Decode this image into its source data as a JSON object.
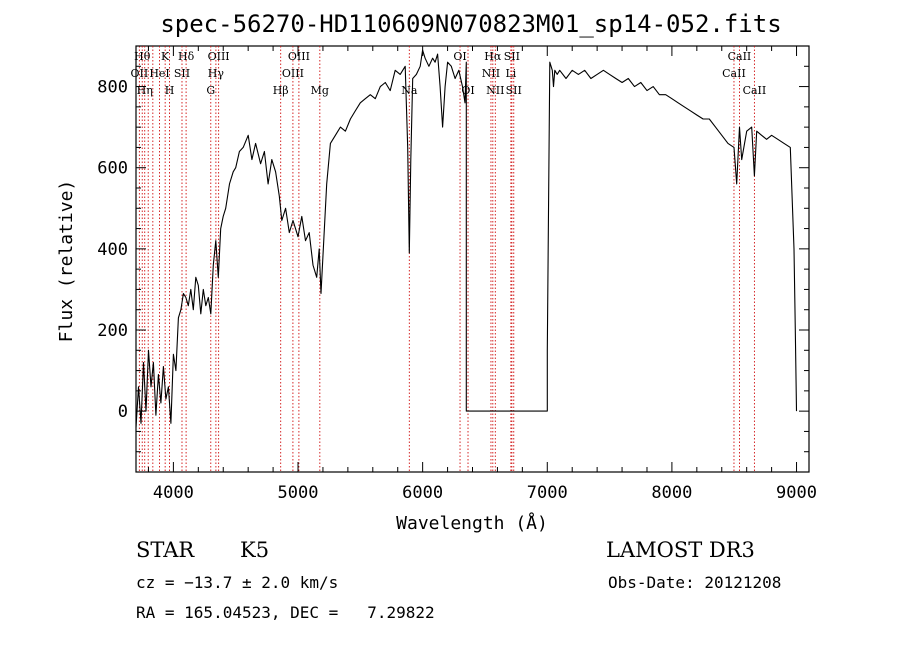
{
  "chart_data": {
    "type": "line",
    "title": "spec-56270-HD110609N070823M01_sp14-052.fits",
    "xlabel": "Wavelength (Å)",
    "ylabel": "Flux (relative)",
    "xlim": [
      3700,
      9100
    ],
    "ylim": [
      -150,
      900
    ],
    "xticks": [
      4000,
      5000,
      6000,
      7000,
      8000,
      9000
    ],
    "yticks": [
      0,
      200,
      400,
      600,
      800
    ],
    "series": [
      {
        "name": "flux",
        "x": [
          3700,
          3720,
          3740,
          3760,
          3780,
          3800,
          3820,
          3840,
          3860,
          3880,
          3900,
          3920,
          3940,
          3960,
          3980,
          4000,
          4020,
          4040,
          4060,
          4080,
          4100,
          4120,
          4140,
          4160,
          4180,
          4200,
          4220,
          4240,
          4260,
          4280,
          4300,
          4320,
          4340,
          4360,
          4380,
          4400,
          4420,
          4450,
          4480,
          4500,
          4530,
          4560,
          4600,
          4630,
          4660,
          4700,
          4730,
          4760,
          4790,
          4820,
          4850,
          4870,
          4900,
          4930,
          4960,
          5000,
          5030,
          5060,
          5090,
          5120,
          5150,
          5170,
          5184,
          5200,
          5230,
          5260,
          5300,
          5340,
          5380,
          5420,
          5460,
          5500,
          5540,
          5580,
          5620,
          5660,
          5700,
          5740,
          5780,
          5820,
          5860,
          5880,
          5893,
          5905,
          5920,
          5950,
          5980,
          6000,
          6020,
          6050,
          6080,
          6100,
          6120,
          6140,
          6160,
          6180,
          6200,
          6230,
          6260,
          6290,
          6320,
          6340,
          6350,
          6350,
          6600,
          7000,
          7000,
          7020,
          7040,
          7050,
          7060,
          7080,
          7100,
          7150,
          7200,
          7250,
          7300,
          7350,
          7400,
          7450,
          7500,
          7550,
          7600,
          7650,
          7700,
          7750,
          7800,
          7850,
          7900,
          7950,
          8000,
          8050,
          8100,
          8150,
          8200,
          8250,
          8300,
          8350,
          8400,
          8450,
          8498,
          8520,
          8542,
          8560,
          8600,
          8640,
          8662,
          8680,
          8720,
          8760,
          8800,
          8850,
          8900,
          8950,
          8980,
          8990,
          9000
        ],
        "y": [
          -40,
          60,
          -30,
          120,
          0,
          150,
          60,
          120,
          -10,
          90,
          20,
          110,
          30,
          60,
          -30,
          140,
          100,
          230,
          250,
          290,
          280,
          260,
          300,
          250,
          330,
          310,
          240,
          300,
          260,
          280,
          240,
          360,
          420,
          330,
          450,
          480,
          500,
          560,
          590,
          600,
          640,
          650,
          680,
          620,
          660,
          610,
          640,
          560,
          620,
          590,
          530,
          470,
          500,
          440,
          470,
          430,
          480,
          420,
          440,
          360,
          330,
          400,
          290,
          380,
          560,
          660,
          680,
          700,
          690,
          720,
          740,
          760,
          770,
          780,
          770,
          800,
          810,
          790,
          840,
          830,
          850,
          650,
          390,
          620,
          820,
          830,
          850,
          890,
          870,
          850,
          870,
          860,
          880,
          800,
          700,
          800,
          860,
          850,
          820,
          840,
          800,
          760,
          860,
          0,
          0,
          0,
          150,
          860,
          840,
          800,
          840,
          830,
          840,
          820,
          840,
          830,
          840,
          820,
          830,
          840,
          830,
          820,
          810,
          820,
          800,
          810,
          790,
          800,
          780,
          780,
          770,
          760,
          750,
          740,
          730,
          720,
          720,
          700,
          680,
          660,
          650,
          560,
          700,
          620,
          690,
          700,
          580,
          690,
          680,
          670,
          680,
          670,
          660,
          650,
          400,
          200,
          0
        ]
      }
    ],
    "line_markers": [
      {
        "wl": 3750,
        "label": "Hθ",
        "row": 0
      },
      {
        "wl": 3727,
        "label": "OII",
        "row": 1
      },
      {
        "wl": 3770,
        "label": "Hη",
        "row": 2
      },
      {
        "wl": 3798,
        "label": "",
        "row": -1
      },
      {
        "wl": 3835,
        "label": "",
        "row": -1
      },
      {
        "wl": 3889,
        "label": "HeI",
        "row": 1
      },
      {
        "wl": 3934,
        "label": "K",
        "row": 0
      },
      {
        "wl": 3969,
        "label": "H",
        "row": 2
      },
      {
        "wl": 4069,
        "label": "SII",
        "row": 1
      },
      {
        "wl": 4102,
        "label": "Hδ",
        "row": 0
      },
      {
        "wl": 4300,
        "label": "G",
        "row": 2
      },
      {
        "wl": 4341,
        "label": "Hγ",
        "row": 1
      },
      {
        "wl": 4363,
        "label": "OIII",
        "row": 0
      },
      {
        "wl": 4861,
        "label": "Hβ",
        "row": 2
      },
      {
        "wl": 4959,
        "label": "OIII",
        "row": 1
      },
      {
        "wl": 5007,
        "label": "OIII",
        "row": 0
      },
      {
        "wl": 5175,
        "label": "Mg",
        "row": 2
      },
      {
        "wl": 5893,
        "label": "Na",
        "row": 2
      },
      {
        "wl": 6300,
        "label": "OI",
        "row": 0
      },
      {
        "wl": 6364,
        "label": "OI",
        "row": 2
      },
      {
        "wl": 6548,
        "label": "NII",
        "row": 1
      },
      {
        "wl": 6563,
        "label": "Hα",
        "row": 0
      },
      {
        "wl": 6583,
        "label": "NII",
        "row": 2
      },
      {
        "wl": 6708,
        "label": "Li",
        "row": 1
      },
      {
        "wl": 6716,
        "label": "SII",
        "row": 0
      },
      {
        "wl": 6731,
        "label": "SII",
        "row": 2
      },
      {
        "wl": 8498,
        "label": "CaII",
        "row": 1
      },
      {
        "wl": 8542,
        "label": "CaII",
        "row": 0
      },
      {
        "wl": 8662,
        "label": "CaII",
        "row": 2
      }
    ]
  },
  "footer": {
    "object_class": "STAR",
    "subclass": "K5",
    "survey": "LAMOST DR3",
    "cz": "cz = −13.7 ± 2.0 km/s",
    "obs_date": "Obs-Date: 20121208",
    "coords": "RA = 165.04523, DEC =   7.29822"
  }
}
